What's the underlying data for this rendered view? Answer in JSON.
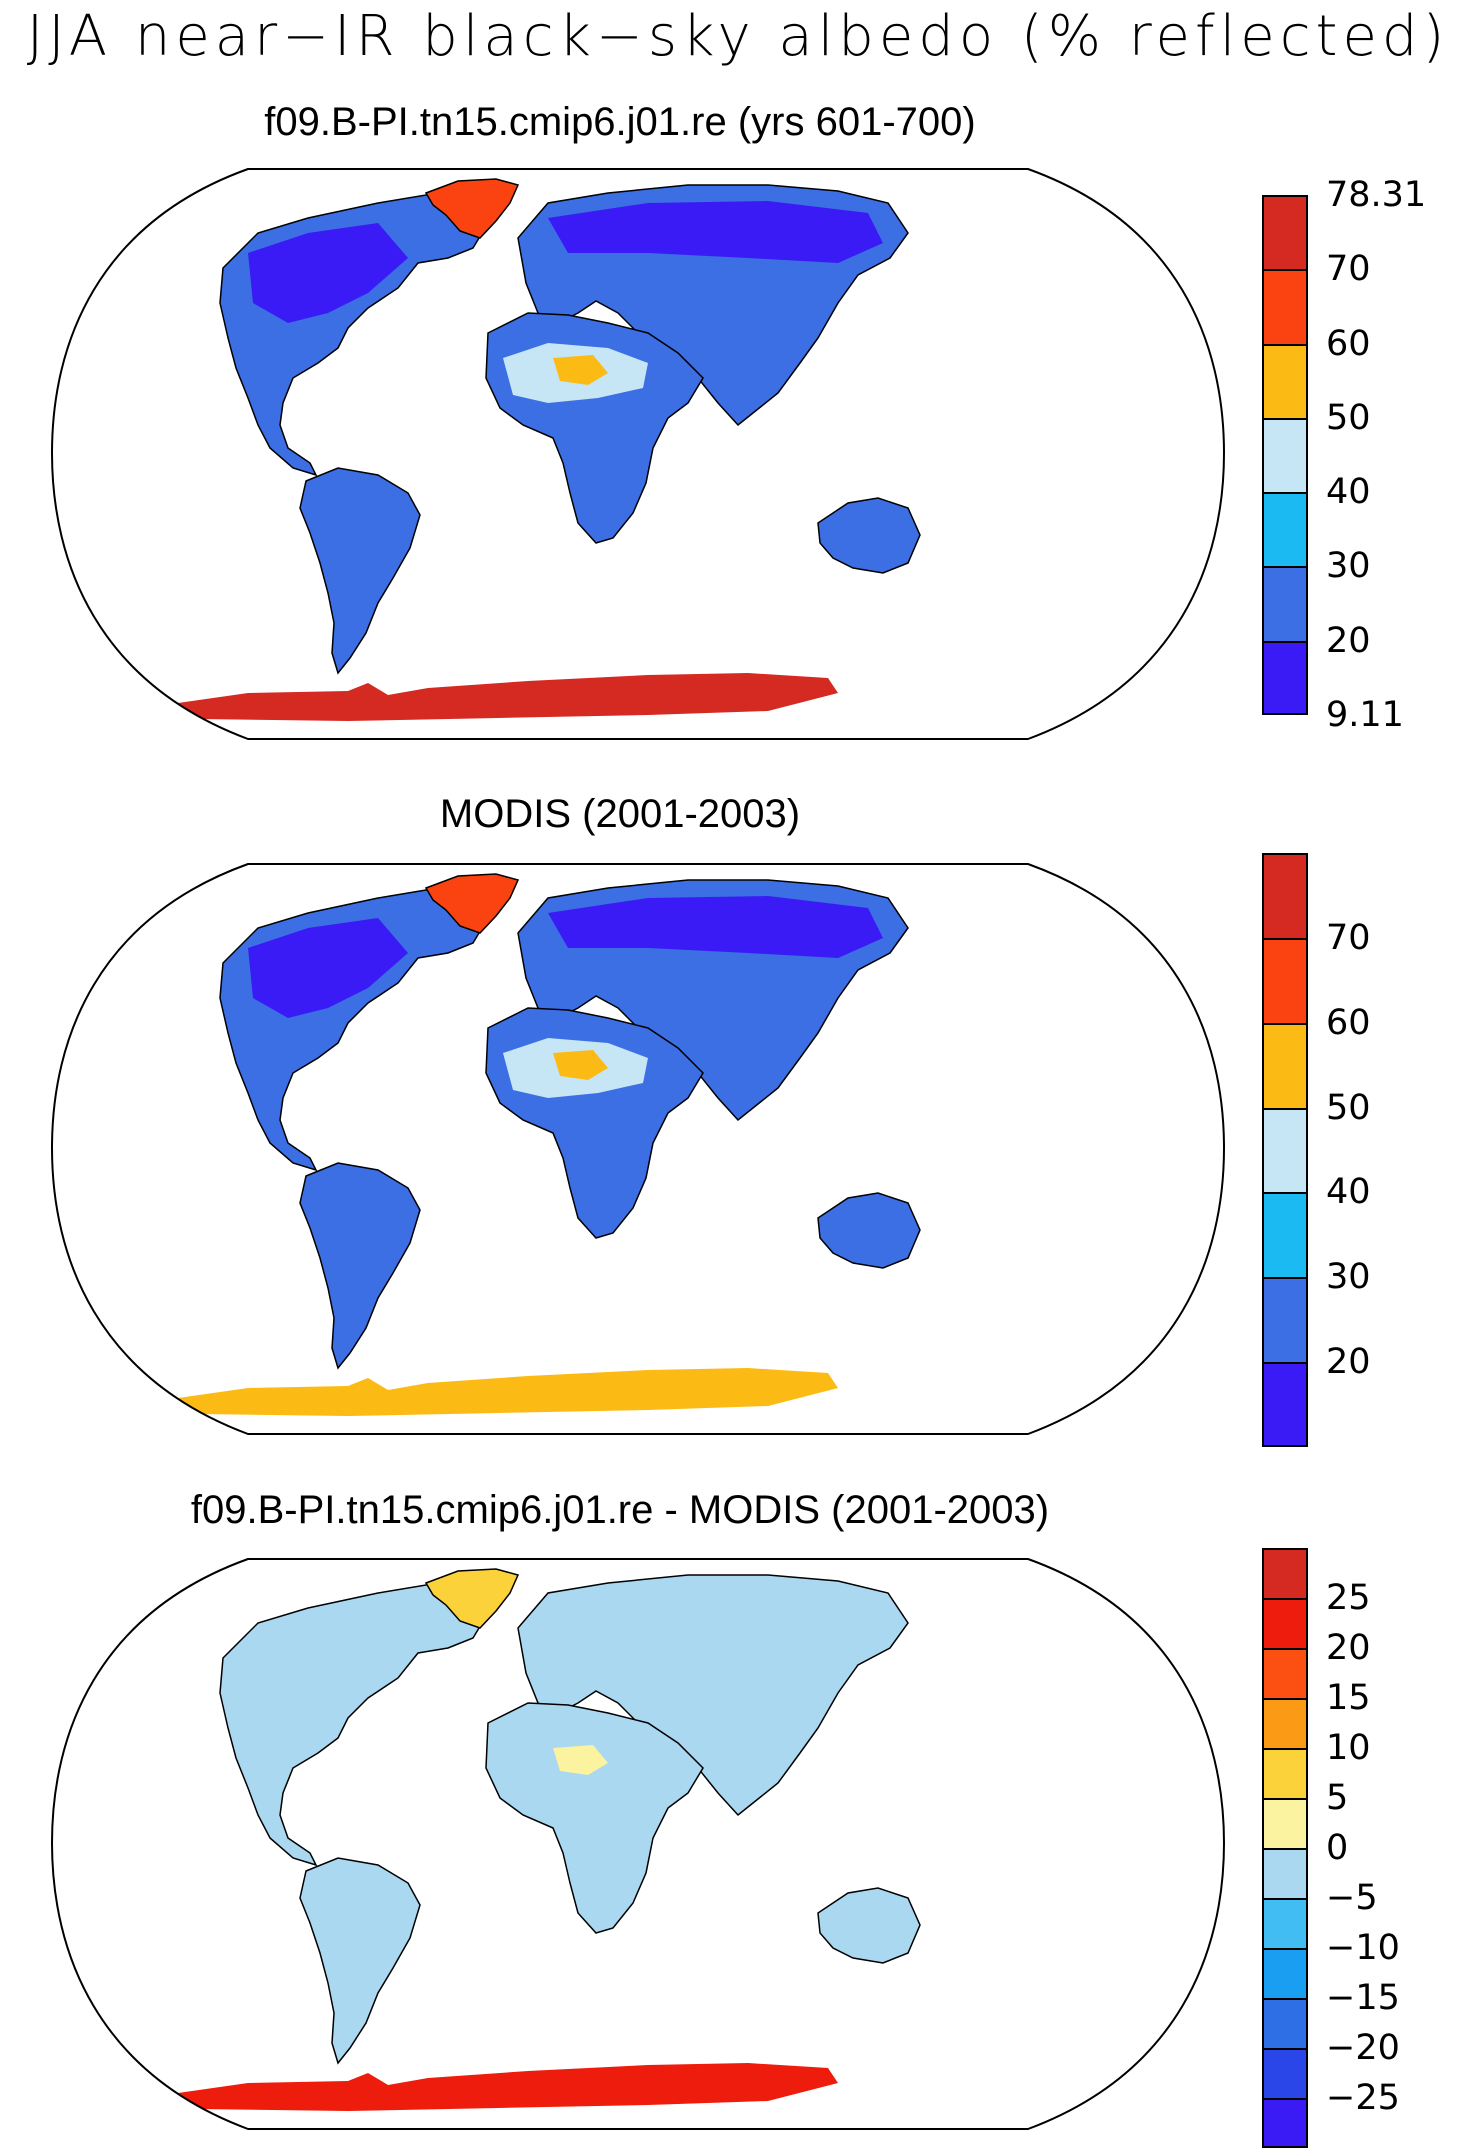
{
  "title": "JJA near−IR black−sky albedo (% reflected)",
  "panels": [
    {
      "id": "model",
      "title": "f09.B-PI.tn15.cmip6.j01.re (yrs 601-700)",
      "colorbar": {
        "colors": [
          "#3a1bf5",
          "#3b6fe3",
          "#1cbaf2",
          "#c7e6f5",
          "#fbbb14",
          "#fb4312",
          "#d52a22"
        ],
        "labels": [
          "9.11",
          "20",
          "30",
          "40",
          "50",
          "60",
          "70",
          "78.31"
        ]
      },
      "fills": {
        "north": "#3a1bf5",
        "mid": "#3b6fe3",
        "desert": "#c7e6f5",
        "sahara": "#fbbb14",
        "antarctica": "#d52a22",
        "greenland": "#fb4312",
        "australia": "#3b6fe3"
      }
    },
    {
      "id": "obs",
      "title": "MODIS (2001-2003)",
      "colorbar": {
        "colors": [
          "#3a1bf5",
          "#3b6fe3",
          "#1cbaf2",
          "#c7e6f5",
          "#fbbb14",
          "#fb4312",
          "#d52a22"
        ],
        "labels": [
          "",
          "20",
          "30",
          "40",
          "50",
          "60",
          "70",
          ""
        ]
      },
      "fills": {
        "north": "#3a1bf5",
        "mid": "#3b6fe3",
        "desert": "#c7e6f5",
        "sahara": "#fbbb14",
        "antarctica": "#fbbb14",
        "greenland": "#fb4312",
        "australia": "#3b6fe3"
      }
    },
    {
      "id": "diff",
      "title": "f09.B-PI.tn15.cmip6.j01.re - MODIS (2001-2003)",
      "colorbar": {
        "colors": [
          "#3a1bf5",
          "#2a45e8",
          "#2f6fe5",
          "#1a9ef2",
          "#42bdf3",
          "#a9d8f0",
          "#fbf3a0",
          "#fbd23a",
          "#fb9a14",
          "#fb5012",
          "#ee1c0c",
          "#d52a22"
        ],
        "labels": [
          "",
          "−25",
          "−20",
          "−15",
          "−10",
          "−5",
          "0",
          "5",
          "10",
          "15",
          "20",
          "25",
          ""
        ]
      },
      "fills": {
        "north": "#a9d8f0",
        "mid": "#a9d8f0",
        "desert": "#a9d8f0",
        "sahara": "#fbf3a0",
        "antarctica": "#ee1c0c",
        "greenland": "#fbd23a",
        "australia": "#a9d8f0"
      }
    }
  ]
}
